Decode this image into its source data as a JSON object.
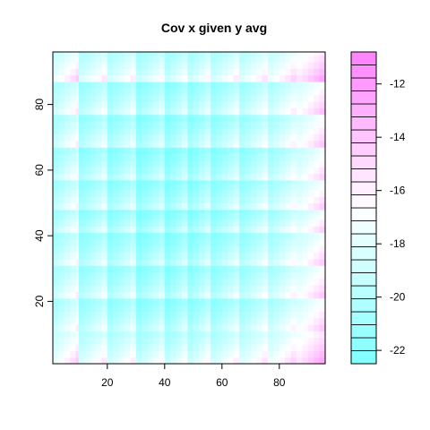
{
  "chart_data": {
    "type": "heatmap",
    "title": "Cov x given y avg",
    "xlabel": "",
    "ylabel": "",
    "x_range": [
      1,
      96
    ],
    "y_range": [
      1,
      96
    ],
    "x_ticks": [
      20,
      40,
      60,
      80
    ],
    "y_ticks": [
      20,
      40,
      60,
      80
    ],
    "block_rows": 10,
    "block_cols": 10,
    "row_boundaries": [
      1,
      11,
      21,
      31,
      41,
      48,
      57,
      67,
      77,
      87,
      96
    ],
    "col_boundaries": [
      1,
      10,
      20,
      30,
      40,
      48,
      56,
      66,
      76,
      86,
      96
    ],
    "row_level": [
      -17.5,
      -20.5,
      -20.5,
      -21,
      -21.5,
      -21,
      -21.5,
      -20.5,
      -20,
      -17.5
    ],
    "col_level": [
      -18,
      -20,
      -20.5,
      -21.5,
      -21.5,
      -21,
      -20.5,
      -19.5,
      -18,
      -14
    ],
    "value_range": [
      -22.5,
      -10.8
    ],
    "colorbar": {
      "ticks": [
        -12,
        -14,
        -16,
        -18,
        -20,
        -22
      ],
      "range": [
        -22.5,
        -10.8
      ],
      "n_bins": 24,
      "low_color": "#80ffff",
      "mid_color": "#ffffff",
      "high_color": "#ff80ff"
    },
    "legend_position": "right",
    "grid": false
  }
}
